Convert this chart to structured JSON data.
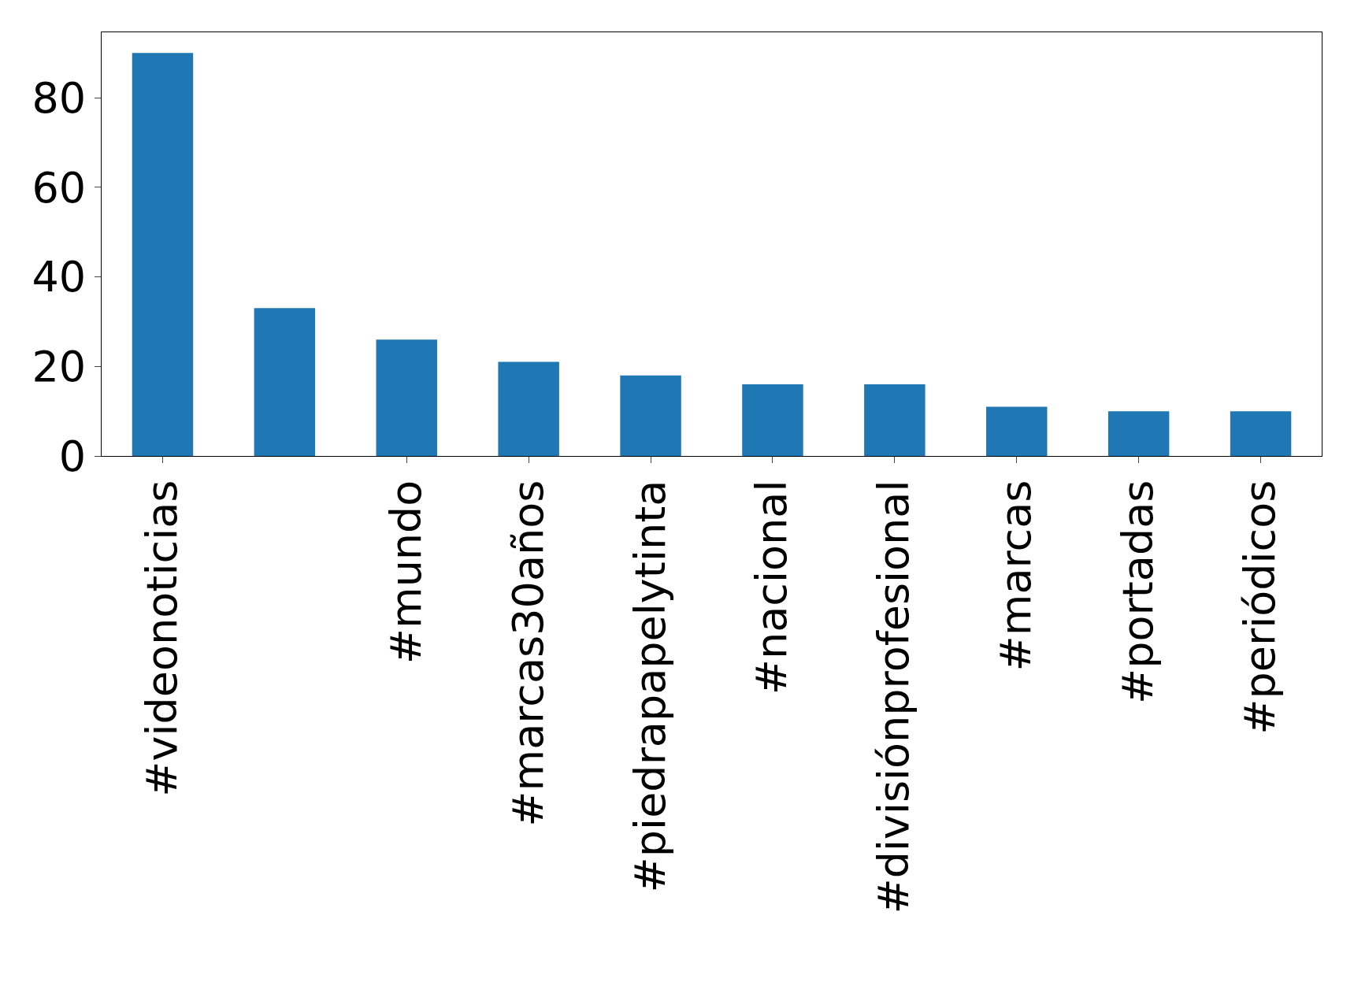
{
  "chart_data": {
    "type": "bar",
    "categories": [
      "#videonoticias",
      null,
      "#mundo",
      "#marcas30años",
      "#piedrapapelytinta",
      "#nacional",
      "#divisiónprofesional",
      "#marcas",
      "#portadas",
      "#periódicos"
    ],
    "values": [
      90,
      33,
      26,
      21,
      18,
      16,
      16,
      11,
      10,
      10
    ],
    "color": "#1f77b4",
    "ylim": [
      0,
      94.6
    ],
    "yticks": [
      0,
      20,
      40,
      60,
      80
    ],
    "legend": false
  }
}
